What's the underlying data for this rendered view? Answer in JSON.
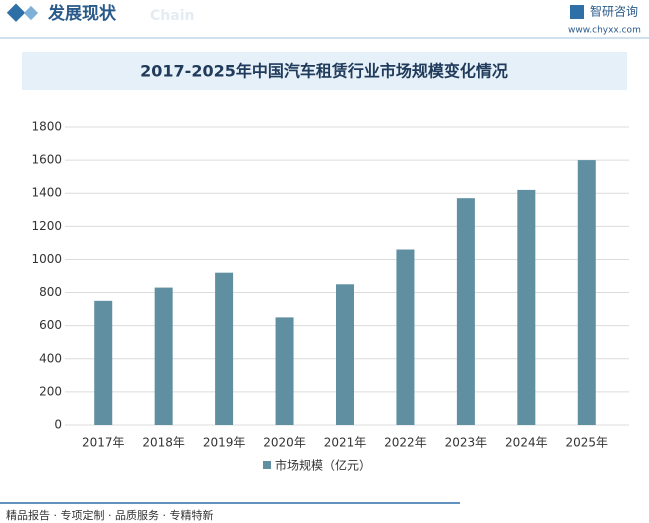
{
  "header": {
    "title": "发展现状",
    "watermark": "Chain",
    "brand": "智研咨询",
    "url": "www.chyxx.com"
  },
  "chart_data": {
    "type": "bar",
    "title": "2017-2025年中国汽车租赁行业市场规模变化情况",
    "categories": [
      "2017年",
      "2018年",
      "2019年",
      "2020年",
      "2021年",
      "2022年",
      "2023年",
      "2024年",
      "2025年"
    ],
    "series": [
      {
        "name": "市场规模（亿元）",
        "color": "#5f8fa0",
        "values": [
          750,
          830,
          920,
          650,
          850,
          1060,
          1370,
          1420,
          1600
        ]
      }
    ],
    "ylim": [
      0,
      1800
    ],
    "yticks": [
      0,
      200,
      400,
      600,
      800,
      1000,
      1200,
      1400,
      1600,
      1800
    ],
    "grid": true,
    "legend": "bottom"
  },
  "footer": {
    "text": "精品报告 · 专项定制 · 品质服务 · 专精特新"
  }
}
